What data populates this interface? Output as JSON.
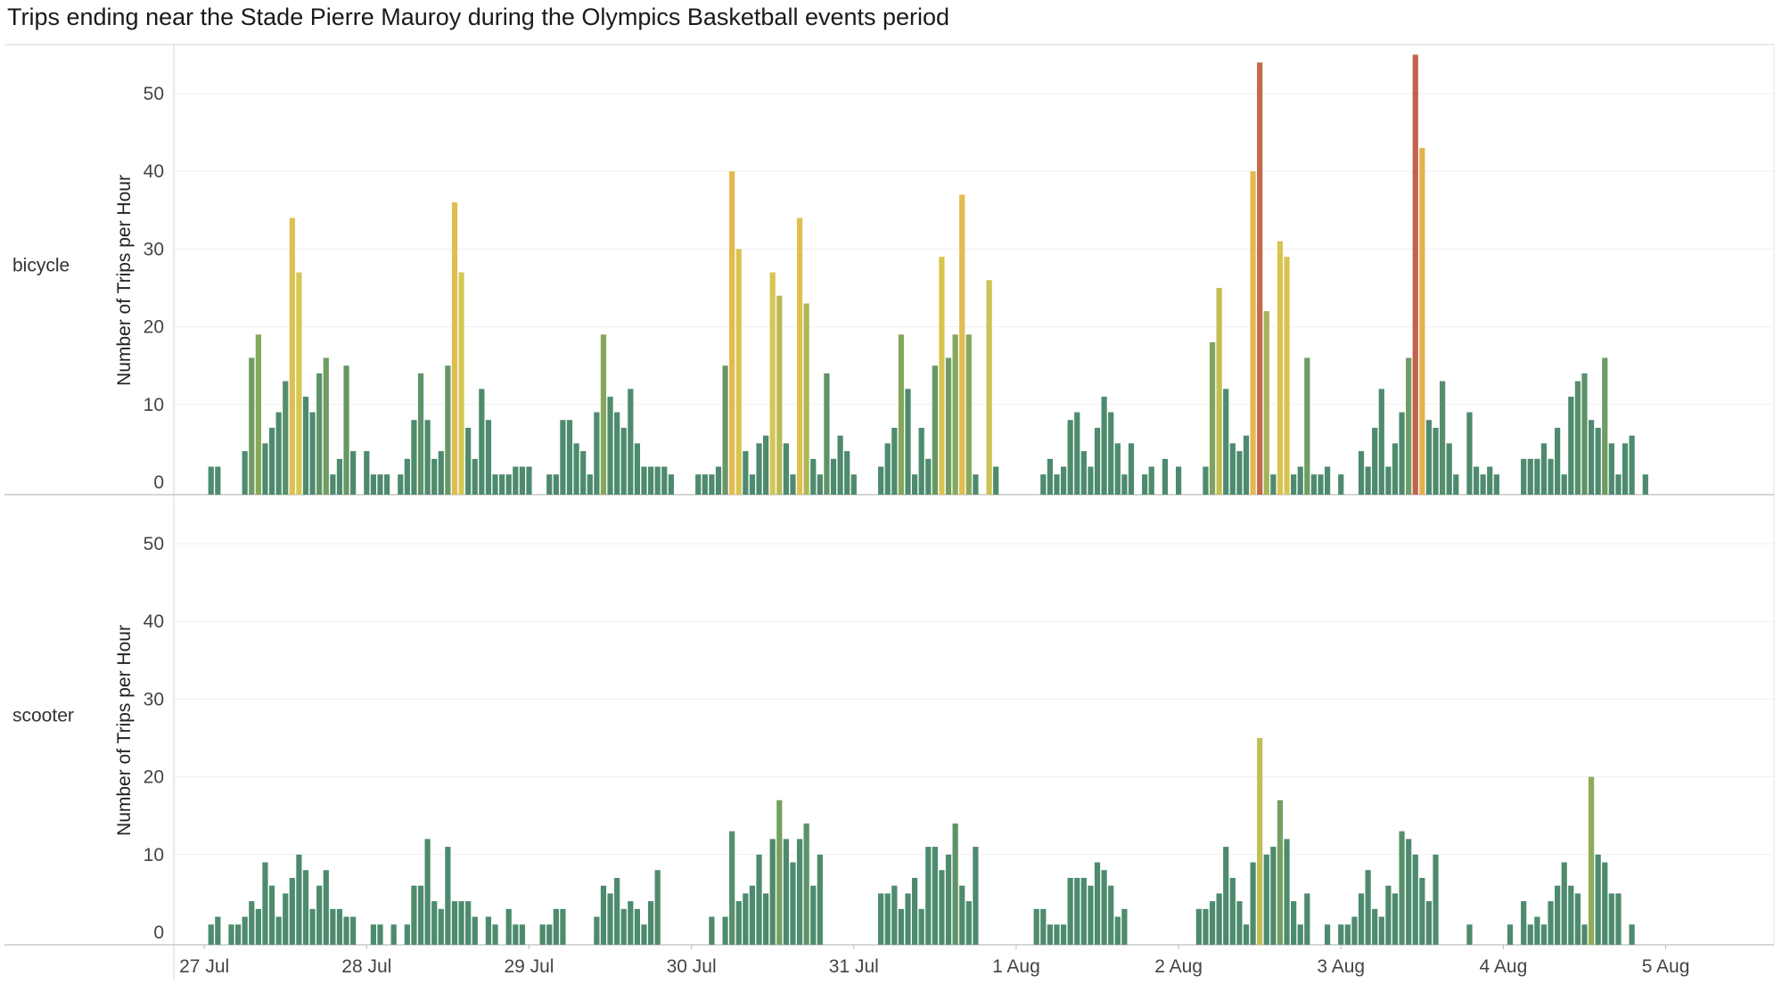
{
  "chart_data": {
    "type": "bar",
    "title": "Trips ending near the Stade Pierre Mauroy during the Olympics Basketball events period",
    "xlabel": "",
    "ylabel": "Number of Trips per Hour",
    "ylim": [
      0,
      55
    ],
    "yticks": [
      0,
      10,
      20,
      30,
      40,
      50
    ],
    "grid": true,
    "x_ticks": [
      "27 Jul",
      "28 Jul",
      "29 Jul",
      "30 Jul",
      "31 Jul",
      "1 Aug",
      "2 Aug",
      "3 Aug",
      "4 Aug",
      "5 Aug"
    ],
    "x_range_hours": [
      -4.5,
      232
    ],
    "color_scale": {
      "low": "#4e8b6e",
      "mid_low": "#86a85a",
      "mid": "#d5c752",
      "high": "#e8b74e",
      "max": "#c1624a",
      "domain_max": 55
    },
    "series": [
      {
        "name": "bicycle",
        "values": [
          [
            1,
            2
          ],
          [
            2,
            2
          ],
          [
            6,
            4
          ],
          [
            7,
            16
          ],
          [
            8,
            19
          ],
          [
            9,
            5
          ],
          [
            10,
            7
          ],
          [
            11,
            9
          ],
          [
            12,
            13
          ],
          [
            13,
            34
          ],
          [
            14,
            27
          ],
          [
            15,
            11
          ],
          [
            16,
            9
          ],
          [
            17,
            14
          ],
          [
            18,
            16
          ],
          [
            19,
            1
          ],
          [
            20,
            3
          ],
          [
            21,
            15
          ],
          [
            22,
            4
          ],
          [
            24,
            4
          ],
          [
            25,
            1
          ],
          [
            26,
            1
          ],
          [
            27,
            1
          ],
          [
            29,
            1
          ],
          [
            30,
            3
          ],
          [
            31,
            8
          ],
          [
            32,
            14
          ],
          [
            33,
            8
          ],
          [
            34,
            3
          ],
          [
            35,
            4
          ],
          [
            36,
            15
          ],
          [
            37,
            36
          ],
          [
            38,
            27
          ],
          [
            39,
            7
          ],
          [
            40,
            3
          ],
          [
            41,
            12
          ],
          [
            42,
            8
          ],
          [
            43,
            1
          ],
          [
            44,
            1
          ],
          [
            45,
            1
          ],
          [
            46,
            2
          ],
          [
            47,
            2
          ],
          [
            48,
            2
          ],
          [
            51,
            1
          ],
          [
            52,
            1
          ],
          [
            53,
            8
          ],
          [
            54,
            8
          ],
          [
            55,
            5
          ],
          [
            56,
            4
          ],
          [
            57,
            1
          ],
          [
            58,
            9
          ],
          [
            59,
            19
          ],
          [
            60,
            11
          ],
          [
            61,
            9
          ],
          [
            62,
            7
          ],
          [
            63,
            12
          ],
          [
            64,
            5
          ],
          [
            65,
            2
          ],
          [
            66,
            2
          ],
          [
            67,
            2
          ],
          [
            68,
            2
          ],
          [
            69,
            1
          ],
          [
            73,
            1
          ],
          [
            74,
            1
          ],
          [
            75,
            1
          ],
          [
            76,
            2
          ],
          [
            77,
            15
          ],
          [
            78,
            40
          ],
          [
            79,
            30
          ],
          [
            80,
            4
          ],
          [
            81,
            1
          ],
          [
            82,
            5
          ],
          [
            83,
            6
          ],
          [
            84,
            27
          ],
          [
            85,
            24
          ],
          [
            86,
            5
          ],
          [
            87,
            1
          ],
          [
            88,
            34
          ],
          [
            89,
            23
          ],
          [
            90,
            3
          ],
          [
            91,
            1
          ],
          [
            92,
            14
          ],
          [
            93,
            3
          ],
          [
            94,
            6
          ],
          [
            95,
            4
          ],
          [
            96,
            1
          ],
          [
            100,
            2
          ],
          [
            101,
            5
          ],
          [
            102,
            7
          ],
          [
            103,
            19
          ],
          [
            104,
            12
          ],
          [
            105,
            1
          ],
          [
            106,
            7
          ],
          [
            107,
            3
          ],
          [
            108,
            15
          ],
          [
            109,
            29
          ],
          [
            110,
            16
          ],
          [
            111,
            19
          ],
          [
            112,
            37
          ],
          [
            113,
            19
          ],
          [
            114,
            1
          ],
          [
            116,
            26
          ],
          [
            117,
            2
          ],
          [
            124,
            1
          ],
          [
            125,
            3
          ],
          [
            126,
            1
          ],
          [
            127,
            2
          ],
          [
            128,
            8
          ],
          [
            129,
            9
          ],
          [
            130,
            4
          ],
          [
            131,
            2
          ],
          [
            132,
            7
          ],
          [
            133,
            11
          ],
          [
            134,
            9
          ],
          [
            135,
            5
          ],
          [
            136,
            1
          ],
          [
            137,
            5
          ],
          [
            139,
            1
          ],
          [
            140,
            2
          ],
          [
            142,
            3
          ],
          [
            144,
            2
          ],
          [
            148,
            2
          ],
          [
            149,
            18
          ],
          [
            150,
            25
          ],
          [
            151,
            12
          ],
          [
            152,
            5
          ],
          [
            153,
            4
          ],
          [
            154,
            6
          ],
          [
            155,
            40
          ],
          [
            156,
            54
          ],
          [
            157,
            22
          ],
          [
            158,
            1
          ],
          [
            159,
            31
          ],
          [
            160,
            29
          ],
          [
            161,
            1
          ],
          [
            162,
            2
          ],
          [
            163,
            16
          ],
          [
            164,
            1
          ],
          [
            165,
            1
          ],
          [
            166,
            2
          ],
          [
            168,
            1
          ],
          [
            171,
            4
          ],
          [
            172,
            2
          ],
          [
            173,
            7
          ],
          [
            174,
            12
          ],
          [
            175,
            2
          ],
          [
            176,
            5
          ],
          [
            177,
            9
          ],
          [
            178,
            16
          ],
          [
            179,
            55
          ],
          [
            180,
            43
          ],
          [
            181,
            8
          ],
          [
            182,
            7
          ],
          [
            183,
            13
          ],
          [
            184,
            5
          ],
          [
            185,
            1
          ],
          [
            187,
            9
          ],
          [
            188,
            2
          ],
          [
            189,
            1
          ],
          [
            190,
            2
          ],
          [
            191,
            1
          ],
          [
            195,
            3
          ],
          [
            196,
            3
          ],
          [
            197,
            3
          ],
          [
            198,
            5
          ],
          [
            199,
            3
          ],
          [
            200,
            7
          ],
          [
            201,
            1
          ],
          [
            202,
            11
          ],
          [
            203,
            13
          ],
          [
            204,
            14
          ],
          [
            205,
            8
          ],
          [
            206,
            7
          ],
          [
            207,
            16
          ],
          [
            208,
            5
          ],
          [
            209,
            1
          ],
          [
            210,
            5
          ],
          [
            211,
            6
          ],
          [
            213,
            1
          ]
        ]
      },
      {
        "name": "scooter",
        "values": [
          [
            1,
            1
          ],
          [
            2,
            2
          ],
          [
            4,
            1
          ],
          [
            5,
            1
          ],
          [
            6,
            2
          ],
          [
            7,
            4
          ],
          [
            8,
            3
          ],
          [
            9,
            9
          ],
          [
            10,
            6
          ],
          [
            11,
            2
          ],
          [
            12,
            5
          ],
          [
            13,
            7
          ],
          [
            14,
            10
          ],
          [
            15,
            8
          ],
          [
            16,
            3
          ],
          [
            17,
            6
          ],
          [
            18,
            8
          ],
          [
            19,
            3
          ],
          [
            20,
            3
          ],
          [
            21,
            2
          ],
          [
            22,
            2
          ],
          [
            25,
            1
          ],
          [
            26,
            1
          ],
          [
            28,
            1
          ],
          [
            30,
            1
          ],
          [
            31,
            6
          ],
          [
            32,
            6
          ],
          [
            33,
            12
          ],
          [
            34,
            4
          ],
          [
            35,
            3
          ],
          [
            36,
            11
          ],
          [
            37,
            4
          ],
          [
            38,
            4
          ],
          [
            39,
            4
          ],
          [
            40,
            2
          ],
          [
            42,
            2
          ],
          [
            43,
            1
          ],
          [
            45,
            3
          ],
          [
            46,
            1
          ],
          [
            47,
            1
          ],
          [
            50,
            1
          ],
          [
            51,
            1
          ],
          [
            52,
            3
          ],
          [
            53,
            3
          ],
          [
            58,
            2
          ],
          [
            59,
            6
          ],
          [
            60,
            5
          ],
          [
            61,
            7
          ],
          [
            62,
            3
          ],
          [
            63,
            4
          ],
          [
            64,
            3
          ],
          [
            65,
            1
          ],
          [
            66,
            4
          ],
          [
            67,
            8
          ],
          [
            75,
            2
          ],
          [
            77,
            2
          ],
          [
            78,
            13
          ],
          [
            79,
            4
          ],
          [
            80,
            5
          ],
          [
            81,
            6
          ],
          [
            82,
            10
          ],
          [
            83,
            5
          ],
          [
            84,
            12
          ],
          [
            85,
            17
          ],
          [
            86,
            12
          ],
          [
            87,
            9
          ],
          [
            88,
            12
          ],
          [
            89,
            14
          ],
          [
            90,
            6
          ],
          [
            91,
            10
          ],
          [
            100,
            5
          ],
          [
            101,
            5
          ],
          [
            102,
            6
          ],
          [
            103,
            3
          ],
          [
            104,
            5
          ],
          [
            105,
            7
          ],
          [
            106,
            3
          ],
          [
            107,
            11
          ],
          [
            108,
            11
          ],
          [
            109,
            8
          ],
          [
            110,
            10
          ],
          [
            111,
            14
          ],
          [
            112,
            6
          ],
          [
            113,
            4
          ],
          [
            114,
            11
          ],
          [
            123,
            3
          ],
          [
            124,
            3
          ],
          [
            125,
            1
          ],
          [
            126,
            1
          ],
          [
            127,
            1
          ],
          [
            128,
            7
          ],
          [
            129,
            7
          ],
          [
            130,
            7
          ],
          [
            131,
            6
          ],
          [
            132,
            9
          ],
          [
            133,
            8
          ],
          [
            134,
            6
          ],
          [
            135,
            2
          ],
          [
            136,
            3
          ],
          [
            147,
            3
          ],
          [
            148,
            3
          ],
          [
            149,
            4
          ],
          [
            150,
            5
          ],
          [
            151,
            11
          ],
          [
            152,
            7
          ],
          [
            153,
            4
          ],
          [
            154,
            1
          ],
          [
            155,
            9
          ],
          [
            156,
            25
          ],
          [
            157,
            10
          ],
          [
            158,
            11
          ],
          [
            159,
            17
          ],
          [
            160,
            12
          ],
          [
            161,
            4
          ],
          [
            162,
            1
          ],
          [
            163,
            5
          ],
          [
            166,
            1
          ],
          [
            168,
            1
          ],
          [
            169,
            1
          ],
          [
            170,
            2
          ],
          [
            171,
            5
          ],
          [
            172,
            8
          ],
          [
            173,
            3
          ],
          [
            174,
            2
          ],
          [
            175,
            6
          ],
          [
            176,
            5
          ],
          [
            177,
            13
          ],
          [
            178,
            12
          ],
          [
            179,
            10
          ],
          [
            180,
            7
          ],
          [
            181,
            4
          ],
          [
            182,
            10
          ],
          [
            187,
            1
          ],
          [
            193,
            1
          ],
          [
            195,
            4
          ],
          [
            196,
            1
          ],
          [
            197,
            2
          ],
          [
            198,
            1
          ],
          [
            199,
            4
          ],
          [
            200,
            6
          ],
          [
            201,
            9
          ],
          [
            202,
            6
          ],
          [
            203,
            5
          ],
          [
            204,
            1
          ],
          [
            205,
            20
          ],
          [
            206,
            10
          ],
          [
            207,
            9
          ],
          [
            208,
            5
          ],
          [
            209,
            5
          ],
          [
            211,
            1
          ]
        ]
      }
    ]
  }
}
